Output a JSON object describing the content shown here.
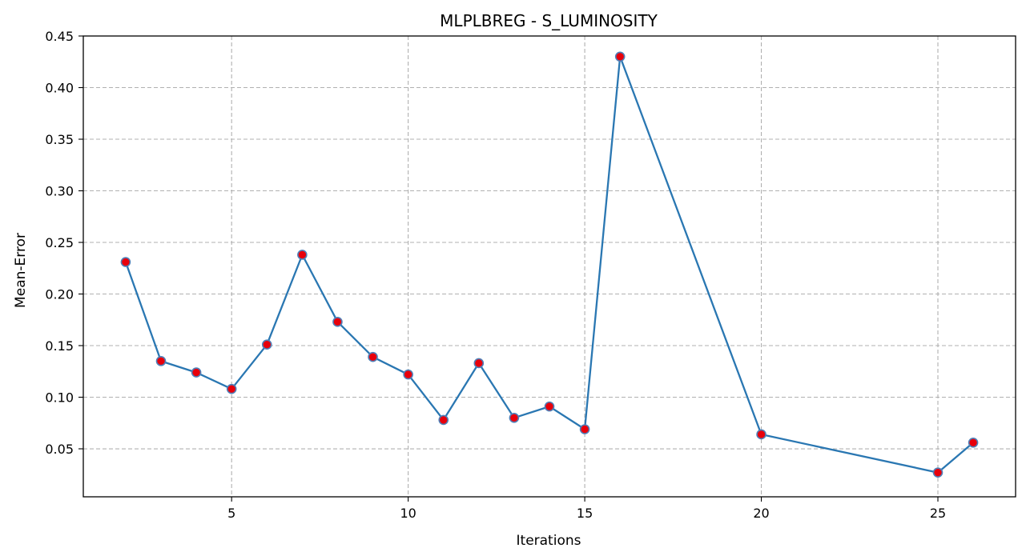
{
  "chart_data": {
    "type": "line",
    "title": "MLPLBREG - S_LUMINOSITY",
    "xlabel": "Iterations",
    "ylabel": "Mean-Error",
    "xlim": [
      0.8,
      27.2
    ],
    "ylim": [
      0.0035,
      0.45
    ],
    "xticks": [
      5,
      10,
      15,
      20,
      25
    ],
    "yticks": [
      0.05,
      0.1,
      0.15,
      0.2,
      0.25,
      0.3,
      0.35,
      0.4,
      0.45
    ],
    "ytick_labels": [
      "0.05",
      "0.10",
      "0.15",
      "0.20",
      "0.25",
      "0.30",
      "0.35",
      "0.40",
      "0.45"
    ],
    "grid": true,
    "legend": null,
    "series": [
      {
        "x": [
          2,
          3,
          4,
          5,
          6,
          7,
          8,
          9,
          10,
          11,
          12,
          13,
          14,
          15,
          16,
          20,
          25,
          26
        ],
        "y": [
          0.231,
          0.135,
          0.124,
          0.108,
          0.151,
          0.238,
          0.173,
          0.139,
          0.122,
          0.078,
          0.133,
          0.08,
          0.091,
          0.069,
          0.43,
          0.064,
          0.027,
          0.056
        ],
        "line_color": "#2a77b2",
        "marker_face_color": "#e8000b",
        "marker_edge_color": "#5080b8"
      }
    ]
  }
}
